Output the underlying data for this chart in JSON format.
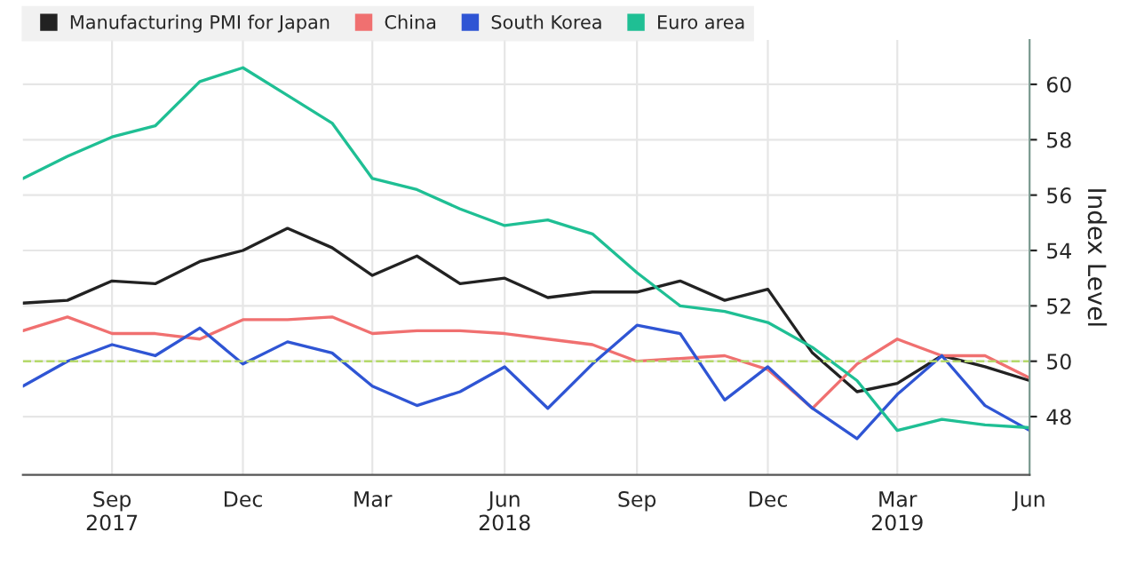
{
  "chart_data": {
    "type": "line",
    "ylabel": "Index Level",
    "x": [
      "2017-07",
      "2017-08",
      "2017-09",
      "2017-10",
      "2017-11",
      "2017-12",
      "2018-01",
      "2018-02",
      "2018-03",
      "2018-04",
      "2018-05",
      "2018-06",
      "2018-07",
      "2018-08",
      "2018-09",
      "2018-10",
      "2018-11",
      "2018-12",
      "2019-01",
      "2019-02",
      "2019-03",
      "2019-04",
      "2019-05",
      "2019-06"
    ],
    "series": [
      {
        "name": "Manufacturing PMI for Japan",
        "color": "#222222",
        "values": [
          52.1,
          52.2,
          52.9,
          52.8,
          53.6,
          54.0,
          54.8,
          54.1,
          53.1,
          53.8,
          52.8,
          53.0,
          52.3,
          52.5,
          52.5,
          52.9,
          52.2,
          52.6,
          50.3,
          48.9,
          49.2,
          50.2,
          49.8,
          49.3
        ]
      },
      {
        "name": "China",
        "color": "#f07070",
        "values": [
          51.1,
          51.6,
          51.0,
          51.0,
          50.8,
          51.5,
          51.5,
          51.6,
          51.0,
          51.1,
          51.1,
          51.0,
          50.8,
          50.6,
          50.0,
          50.1,
          50.2,
          49.7,
          48.3,
          49.9,
          50.8,
          50.2,
          50.2,
          49.4
        ]
      },
      {
        "name": "South Korea",
        "color": "#2f55d4",
        "values": [
          49.1,
          50.0,
          50.6,
          50.2,
          51.2,
          49.9,
          50.7,
          50.3,
          49.1,
          48.4,
          48.9,
          49.8,
          48.3,
          49.9,
          51.3,
          51.0,
          48.6,
          49.8,
          48.3,
          47.2,
          48.8,
          50.2,
          48.4,
          47.5
        ]
      },
      {
        "name": "Euro area",
        "color": "#1fbf94",
        "values": [
          56.6,
          57.4,
          58.1,
          58.5,
          60.1,
          60.6,
          59.6,
          58.6,
          56.6,
          56.2,
          55.5,
          54.9,
          55.1,
          54.6,
          53.2,
          52.0,
          51.8,
          51.4,
          50.5,
          49.3,
          47.5,
          47.9,
          47.7,
          47.6
        ]
      }
    ],
    "xlim": [
      "2017-07",
      "2019-06"
    ],
    "xticks": [
      {
        "value": "2017-09",
        "label": "Sep\n2017"
      },
      {
        "value": "2017-12",
        "label": "Dec"
      },
      {
        "value": "2018-03",
        "label": "Mar"
      },
      {
        "value": "2018-06",
        "label": "Jun\n2018"
      },
      {
        "value": "2018-09",
        "label": "Sep"
      },
      {
        "value": "2018-12",
        "label": "Dec"
      },
      {
        "value": "2019-03",
        "label": "Mar\n2019"
      },
      {
        "value": "2019-06",
        "label": "Jun"
      }
    ],
    "ylim": [
      45.9,
      61.6
    ],
    "yticks": [
      48,
      50,
      52,
      54,
      56,
      58,
      60
    ],
    "ref_lines": [
      {
        "axis": "y",
        "value": 50,
        "label": null,
        "color": "#b5d96a",
        "line_style": "dashed"
      }
    ],
    "grid": true,
    "legend": "top left"
  }
}
